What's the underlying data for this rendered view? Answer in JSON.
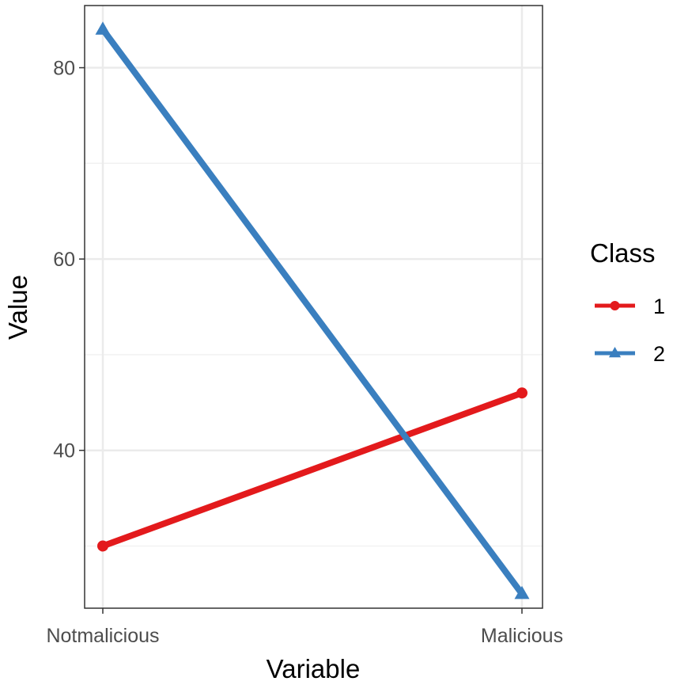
{
  "chart_data": {
    "type": "line",
    "title": "",
    "xlabel": "Variable",
    "ylabel": "Value",
    "categories": [
      "Notmalicious",
      "Malicious"
    ],
    "ylim": [
      23.5,
      86.5
    ],
    "yticks": [
      40,
      60,
      80
    ],
    "grid": true,
    "legend": {
      "title": "Class",
      "position": "right"
    },
    "series": [
      {
        "name": "1",
        "values": [
          30,
          46
        ],
        "color": "#e31a1c",
        "marker": "circle"
      },
      {
        "name": "2",
        "values": [
          84,
          25
        ],
        "color": "#3a7fbf",
        "marker": "triangle"
      }
    ]
  }
}
